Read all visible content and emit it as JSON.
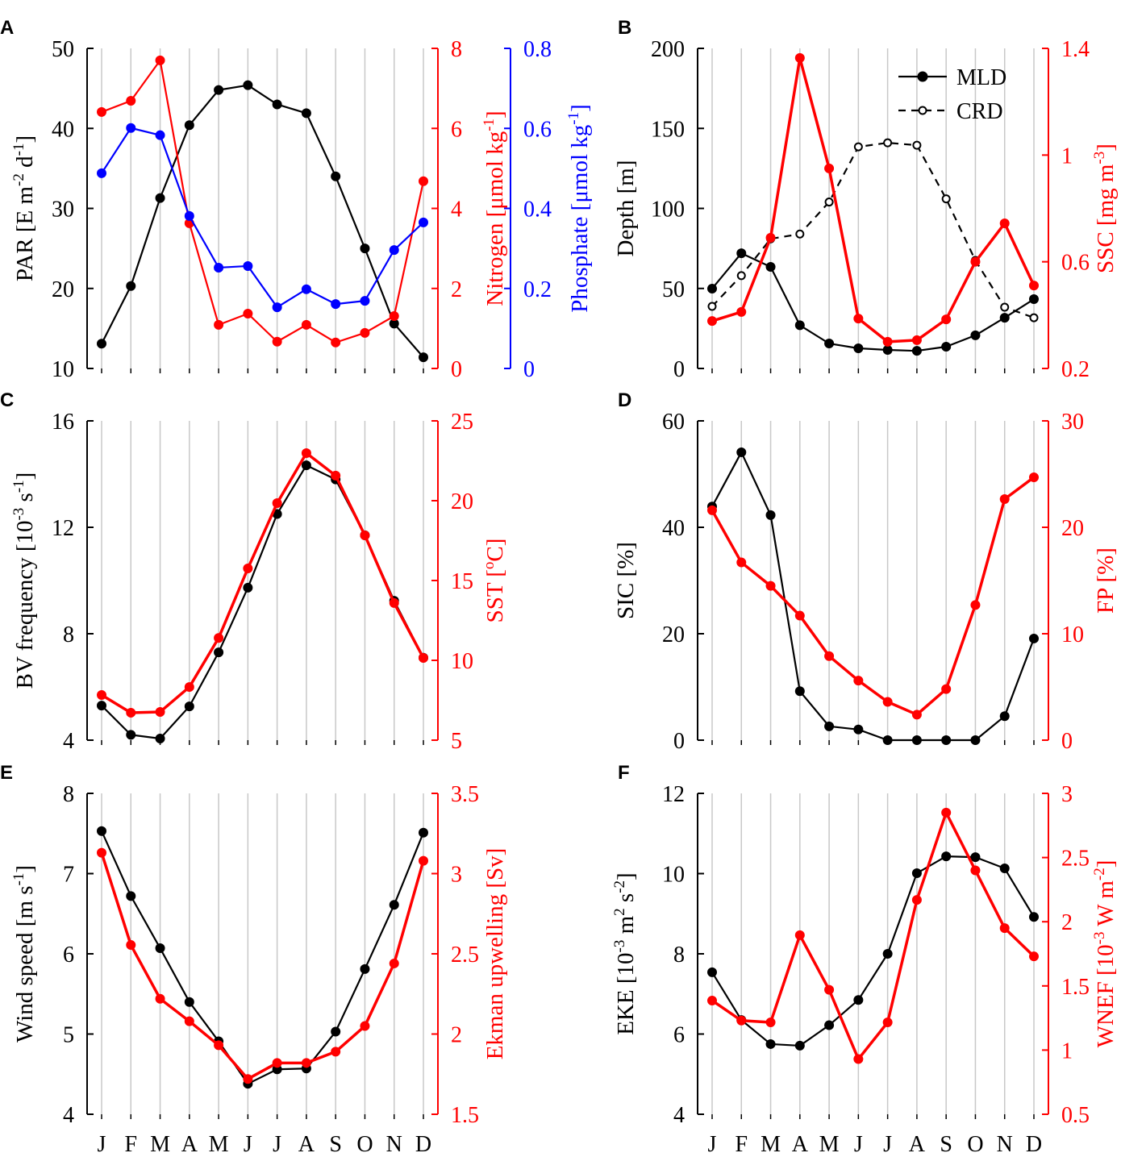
{
  "colors": {
    "black": "#000000",
    "red": "#ff0000",
    "blue": "#0000ff",
    "grid": "#c8c8c8"
  },
  "chart_data": [
    {
      "panel": "A",
      "type": "line",
      "categories": [
        "J",
        "F",
        "M",
        "A",
        "M",
        "J",
        "J",
        "A",
        "S",
        "O",
        "N",
        "D"
      ],
      "axes": [
        {
          "side": "left",
          "label": [
            {
              "t": "PAR [E m"
            },
            {
              "t": "-2",
              "sup": true
            },
            {
              "t": " d"
            },
            {
              "t": "-1",
              "sup": true
            },
            {
              "t": "]"
            }
          ],
          "ylim": [
            10,
            50
          ],
          "ticks": [
            10,
            20,
            30,
            40,
            50
          ],
          "color": "#000000"
        },
        {
          "side": "right",
          "label": [
            {
              "t": "Nitrogen [μmol kg"
            },
            {
              "t": "-1",
              "sup": true
            },
            {
              "t": "]"
            }
          ],
          "ylim": [
            0,
            8
          ],
          "ticks": [
            0,
            2,
            4,
            6,
            8
          ],
          "color": "#ff0000"
        },
        {
          "side": "right2",
          "label": [
            {
              "t": "Phosphate [μmol kg"
            },
            {
              "t": "-1",
              "sup": true
            },
            {
              "t": "]"
            }
          ],
          "ylim": [
            0,
            0.8
          ],
          "ticks": [
            0,
            0.2,
            0.4,
            0.6,
            0.8
          ],
          "color": "#0000ff"
        }
      ],
      "series": [
        {
          "name": "PAR",
          "axis": 0,
          "color": "#000000",
          "values": [
            13.1,
            20.3,
            31.3,
            40.4,
            44.8,
            45.4,
            43.0,
            41.9,
            34.0,
            25.0,
            15.6,
            11.4
          ]
        },
        {
          "name": "Nitrogen",
          "axis": 1,
          "color": "#ff0000",
          "values": [
            6.41,
            6.69,
            7.7,
            3.63,
            1.09,
            1.37,
            0.67,
            1.09,
            0.65,
            0.89,
            1.31,
            4.68
          ]
        },
        {
          "name": "Phosphate",
          "axis": 2,
          "color": "#0000ff",
          "values": [
            0.488,
            0.601,
            0.583,
            0.381,
            0.252,
            0.256,
            0.153,
            0.198,
            0.161,
            0.169,
            0.296,
            0.365
          ]
        }
      ]
    },
    {
      "panel": "B",
      "type": "line",
      "categories": [
        "J",
        "F",
        "M",
        "A",
        "M",
        "J",
        "J",
        "A",
        "S",
        "O",
        "N",
        "D"
      ],
      "axes": [
        {
          "side": "left",
          "label": [
            {
              "t": "Depth [m]"
            }
          ],
          "ylim": [
            0,
            200
          ],
          "ticks": [
            0,
            50,
            100,
            150,
            200
          ],
          "color": "#000000"
        },
        {
          "side": "right",
          "label": [
            {
              "t": "SSC [mg m"
            },
            {
              "t": "-3",
              "sup": true
            },
            {
              "t": "]"
            }
          ],
          "ylim": [
            0.2,
            1.4
          ],
          "ticks": [
            0.2,
            0.6,
            1,
            1.4
          ],
          "color": "#ff0000"
        }
      ],
      "legend": {
        "position": "top-right",
        "entries": [
          "MLD",
          "CRD"
        ]
      },
      "series": [
        {
          "name": "MLD",
          "axis": 0,
          "color": "#000000",
          "values": [
            49.9,
            72.0,
            63.5,
            27.0,
            15.6,
            12.6,
            11.6,
            11.0,
            13.6,
            20.7,
            31.7,
            43.3
          ]
        },
        {
          "name": "CRD",
          "axis": 0,
          "color": "#000000",
          "dashed": true,
          "open": true,
          "values": [
            38.8,
            58.0,
            81.0,
            84.0,
            104.0,
            138.5,
            141.0,
            139.5,
            106.0,
            67.5,
            38.3,
            31.7
          ]
        },
        {
          "name": "SSC",
          "axis": 1,
          "color": "#ff0000",
          "thick": true,
          "values": [
            0.378,
            0.412,
            0.69,
            1.364,
            0.95,
            0.387,
            0.3,
            0.306,
            0.384,
            0.6,
            0.744,
            0.511
          ]
        }
      ]
    },
    {
      "panel": "C",
      "type": "line",
      "categories": [
        "J",
        "F",
        "M",
        "A",
        "M",
        "J",
        "J",
        "A",
        "S",
        "O",
        "N",
        "D"
      ],
      "axes": [
        {
          "side": "left",
          "label": [
            {
              "t": "BV frequency [10"
            },
            {
              "t": "-3",
              "sup": true
            },
            {
              "t": " s"
            },
            {
              "t": "-1",
              "sup": true
            },
            {
              "t": "]"
            }
          ],
          "ylim": [
            4,
            16
          ],
          "ticks": [
            4,
            8,
            12,
            16
          ],
          "color": "#000000"
        },
        {
          "side": "right",
          "label": [
            {
              "t": "SST ["
            },
            {
              "t": "o",
              "sup": true
            },
            {
              "t": "C]"
            }
          ],
          "ylim": [
            5,
            25
          ],
          "ticks": [
            5,
            10,
            15,
            20,
            25
          ],
          "color": "#ff0000"
        }
      ],
      "series": [
        {
          "name": "BV frequency",
          "axis": 0,
          "color": "#000000",
          "values": [
            5.3,
            4.2,
            4.06,
            5.27,
            7.3,
            9.73,
            12.5,
            14.33,
            13.8,
            11.7,
            9.24,
            7.1
          ]
        },
        {
          "name": "SST",
          "axis": 1,
          "color": "#ff0000",
          "thick": true,
          "values": [
            7.83,
            6.72,
            6.77,
            8.33,
            11.4,
            15.76,
            19.85,
            22.98,
            21.57,
            17.83,
            13.59,
            10.15
          ]
        }
      ]
    },
    {
      "panel": "D",
      "type": "line",
      "categories": [
        "J",
        "F",
        "M",
        "A",
        "M",
        "J",
        "J",
        "A",
        "S",
        "O",
        "N",
        "D"
      ],
      "axes": [
        {
          "side": "left",
          "label": [
            {
              "t": "SIC [%]"
            }
          ],
          "ylim": [
            0,
            60
          ],
          "ticks": [
            0,
            20,
            40,
            60
          ],
          "color": "#000000"
        },
        {
          "side": "right",
          "label": [
            {
              "t": "FP [%]"
            }
          ],
          "ylim": [
            0,
            30
          ],
          "ticks": [
            0,
            10,
            20,
            30
          ],
          "color": "#ff0000"
        }
      ],
      "series": [
        {
          "name": "SIC",
          "axis": 0,
          "color": "#000000",
          "values": [
            43.9,
            54.1,
            42.3,
            9.2,
            2.6,
            2.0,
            0,
            0,
            0,
            0,
            4.5,
            19.1
          ]
        },
        {
          "name": "FP",
          "axis": 1,
          "color": "#ff0000",
          "thick": true,
          "values": [
            21.6,
            16.7,
            14.5,
            11.7,
            7.9,
            5.6,
            3.6,
            2.4,
            4.8,
            12.7,
            22.65,
            24.7
          ]
        }
      ]
    },
    {
      "panel": "E",
      "type": "line",
      "categories": [
        "J",
        "F",
        "M",
        "A",
        "M",
        "J",
        "J",
        "A",
        "S",
        "O",
        "N",
        "D"
      ],
      "axes": [
        {
          "side": "left",
          "label": [
            {
              "t": "Wind speed [m s"
            },
            {
              "t": "-1",
              "sup": true
            },
            {
              "t": "]"
            }
          ],
          "ylim": [
            4,
            8
          ],
          "ticks": [
            4,
            5,
            6,
            7,
            8
          ],
          "color": "#000000"
        },
        {
          "side": "right",
          "label": [
            {
              "t": "Ekman upwelling [Sv]"
            }
          ],
          "ylim": [
            1.5,
            3.5
          ],
          "ticks": [
            1.5,
            2,
            2.5,
            3,
            3.5
          ],
          "color": "#ff0000"
        }
      ],
      "series": [
        {
          "name": "Wind speed",
          "axis": 0,
          "color": "#000000",
          "values": [
            7.53,
            6.72,
            6.07,
            5.4,
            4.91,
            4.38,
            4.56,
            4.57,
            5.03,
            5.81,
            6.61,
            7.51
          ]
        },
        {
          "name": "Ekman upwelling",
          "axis": 1,
          "color": "#ff0000",
          "thick": true,
          "values": [
            3.13,
            2.555,
            2.22,
            2.08,
            1.93,
            1.72,
            1.82,
            1.82,
            1.89,
            2.05,
            2.44,
            3.08
          ]
        }
      ]
    },
    {
      "panel": "F",
      "type": "line",
      "categories": [
        "J",
        "F",
        "M",
        "A",
        "M",
        "J",
        "J",
        "A",
        "S",
        "O",
        "N",
        "D"
      ],
      "axes": [
        {
          "side": "left",
          "label": [
            {
              "t": "EKE [10"
            },
            {
              "t": "-3",
              "sup": true
            },
            {
              "t": " m"
            },
            {
              "t": "2",
              "sup": true
            },
            {
              "t": " s"
            },
            {
              "t": "-2",
              "sup": true
            },
            {
              "t": "]"
            }
          ],
          "ylim": [
            4,
            12
          ],
          "ticks": [
            4,
            6,
            8,
            10,
            12
          ],
          "color": "#000000"
        },
        {
          "side": "right",
          "label": [
            {
              "t": "WNEF [10"
            },
            {
              "t": "-3",
              "sup": true
            },
            {
              "t": " W m"
            },
            {
              "t": "-2",
              "sup": true
            },
            {
              "t": "]"
            }
          ],
          "ylim": [
            0.5,
            3
          ],
          "ticks": [
            0.5,
            1,
            1.5,
            2,
            2.5,
            3
          ],
          "color": "#ff0000"
        }
      ],
      "series": [
        {
          "name": "EKE",
          "axis": 0,
          "color": "#000000",
          "values": [
            7.54,
            6.35,
            5.75,
            5.71,
            6.22,
            6.85,
            8.0,
            10.01,
            10.43,
            10.41,
            10.13,
            8.92
          ]
        },
        {
          "name": "WNEF",
          "axis": 1,
          "color": "#ff0000",
          "thick": true,
          "values": [
            1.386,
            1.23,
            1.216,
            1.895,
            1.47,
            0.93,
            1.216,
            2.17,
            2.85,
            2.4,
            1.95,
            1.73
          ]
        }
      ]
    }
  ]
}
